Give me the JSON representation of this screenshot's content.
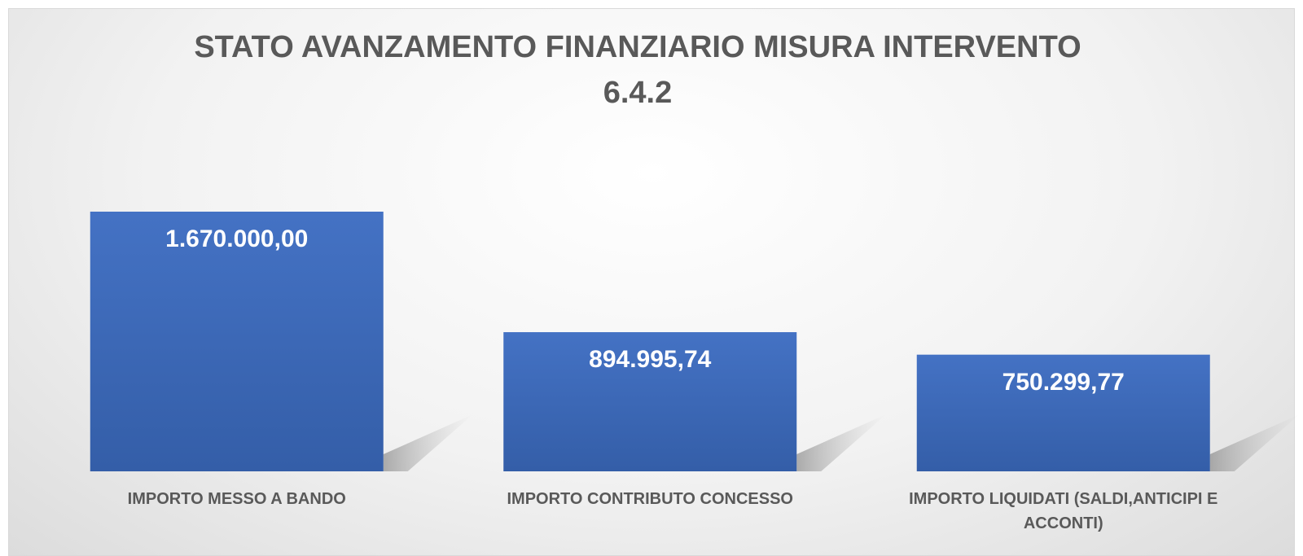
{
  "chart_data": {
    "type": "bar",
    "title": "STATO AVANZAMENTO FINANZIARIO MISURA INTERVENTO 6.4.2",
    "categories": [
      "IMPORTO MESSO A BANDO",
      "IMPORTO CONTRIBUTO CONCESSO",
      "IMPORTO LIQUIDATI (SALDI,ANTICIPI E ACCONTI)"
    ],
    "values": [
      1670000,
      894995.74,
      750299.77
    ],
    "value_labels": [
      "1.670.000,00",
      "894.995,74",
      "750.299,77"
    ],
    "color": "#4472c4"
  }
}
